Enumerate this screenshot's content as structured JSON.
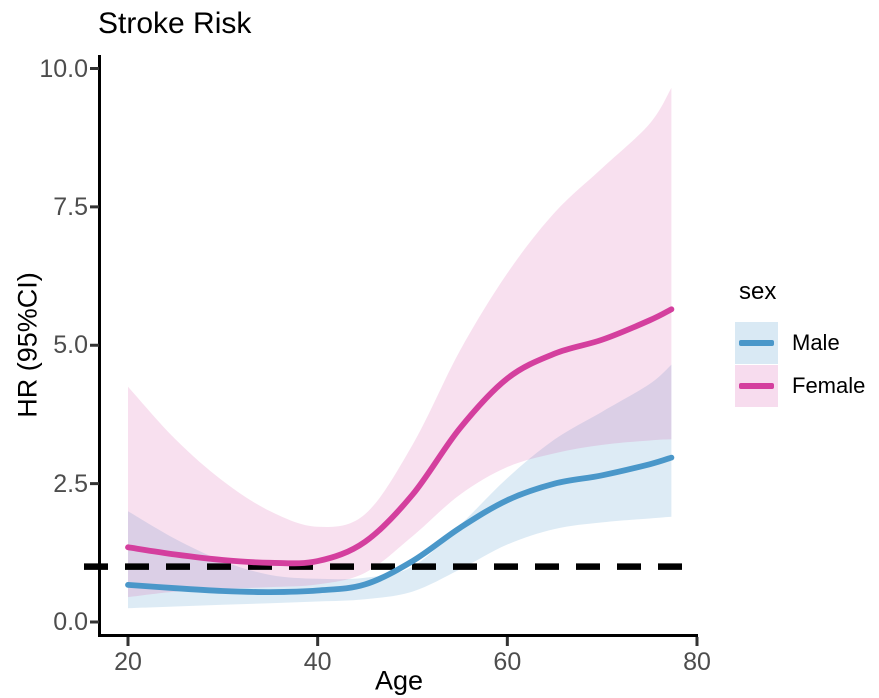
{
  "chart_data": {
    "type": "line",
    "title": "Stroke Risk",
    "xlabel": "Age",
    "ylabel": "HR (95%CI)",
    "xlim": [
      17,
      82
    ],
    "ylim": [
      -0.2,
      10.2
    ],
    "x_ticks": [
      "20",
      "40",
      "60",
      "80"
    ],
    "y_ticks": [
      "0.0",
      "2.5",
      "5.0",
      "7.5",
      "10.0"
    ],
    "grid": false,
    "legend": {
      "title": "sex",
      "position": "right",
      "entries": [
        "Male",
        "Female"
      ]
    },
    "reference_line": {
      "y": 1.0,
      "style": "dashed",
      "color": "#000000"
    },
    "x": [
      20,
      25,
      30,
      35,
      40,
      45,
      50,
      55,
      60,
      65,
      70,
      75,
      77.3
    ],
    "series": [
      {
        "name": "Male",
        "color": "#4A97C9",
        "values": [
          0.67,
          0.61,
          0.56,
          0.54,
          0.57,
          0.68,
          1.1,
          1.7,
          2.2,
          2.5,
          2.65,
          2.85,
          2.97
        ],
        "ci_upper": [
          2.0,
          1.5,
          1.1,
          0.85,
          0.78,
          0.8,
          1.0,
          1.75,
          2.6,
          3.3,
          3.8,
          4.3,
          4.65
        ],
        "ci_lower": [
          0.25,
          0.28,
          0.31,
          0.34,
          0.37,
          0.41,
          0.55,
          0.95,
          1.4,
          1.68,
          1.8,
          1.87,
          1.9
        ]
      },
      {
        "name": "Female",
        "color": "#D43F9E",
        "values": [
          1.35,
          1.22,
          1.12,
          1.07,
          1.1,
          1.45,
          2.3,
          3.5,
          4.4,
          4.85,
          5.1,
          5.45,
          5.65
        ],
        "ci_upper": [
          4.25,
          3.3,
          2.55,
          2.0,
          1.72,
          1.95,
          3.2,
          4.9,
          6.3,
          7.4,
          8.2,
          9.0,
          9.65
        ],
        "ci_lower": [
          0.45,
          0.55,
          0.6,
          0.63,
          0.68,
          0.89,
          1.55,
          2.3,
          2.8,
          3.05,
          3.2,
          3.28,
          3.3
        ]
      }
    ]
  }
}
